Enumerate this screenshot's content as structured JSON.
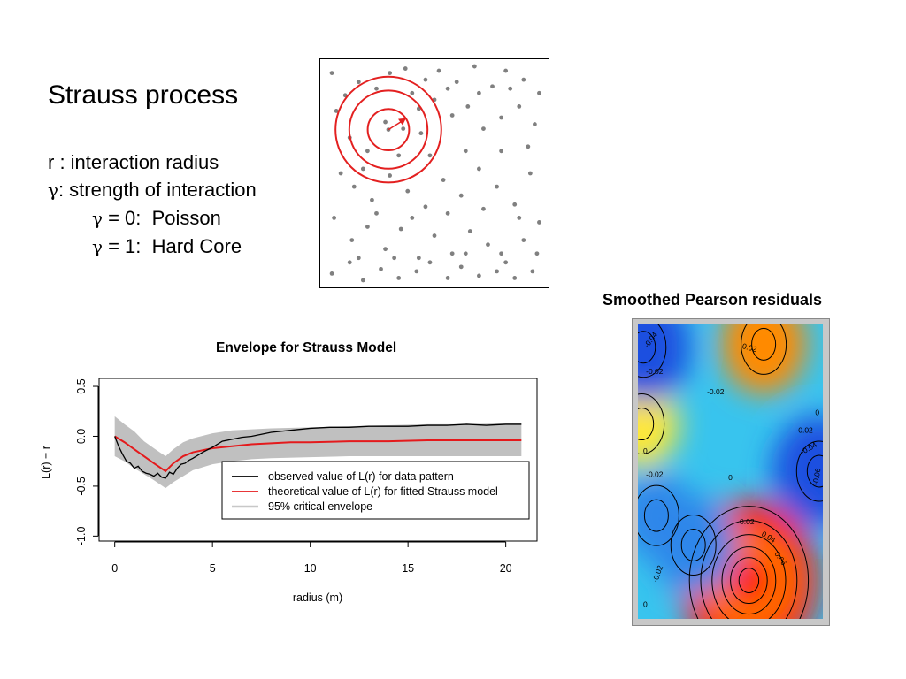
{
  "slide": {
    "title": "Strauss process",
    "bullets": [
      {
        "symbol": "",
        "text": "r : interaction radius"
      },
      {
        "symbol": "γ",
        "text": ": strength of interaction"
      },
      {
        "symbol": "γ",
        "text": " = 0:  Poisson"
      },
      {
        "symbol": "γ",
        "text": " = 1:  Hard Core"
      }
    ]
  },
  "colors": {
    "observed": "#000000",
    "theoretical": "#e41a1c",
    "envelope": "#c0c0c0",
    "circles": "#e32020",
    "points": "#808080"
  },
  "chart_data": [
    {
      "type": "scatter",
      "description_hidden": true,
      "points": [
        [
          0.04,
          0.95
        ],
        [
          0.16,
          0.91
        ],
        [
          0.3,
          0.95
        ],
        [
          0.37,
          0.97
        ],
        [
          0.46,
          0.92
        ],
        [
          0.52,
          0.96
        ],
        [
          0.6,
          0.91
        ],
        [
          0.68,
          0.98
        ],
        [
          0.76,
          0.89
        ],
        [
          0.82,
          0.96
        ],
        [
          0.9,
          0.92
        ],
        [
          0.97,
          0.86
        ],
        [
          0.06,
          0.78
        ],
        [
          0.12,
          0.66
        ],
        [
          0.2,
          0.6
        ],
        [
          0.28,
          0.73
        ],
        [
          0.36,
          0.7
        ],
        [
          0.43,
          0.79
        ],
        [
          0.5,
          0.83
        ],
        [
          0.58,
          0.76
        ],
        [
          0.65,
          0.8
        ],
        [
          0.72,
          0.7
        ],
        [
          0.8,
          0.75
        ],
        [
          0.88,
          0.8
        ],
        [
          0.95,
          0.72
        ],
        [
          0.08,
          0.5
        ],
        [
          0.14,
          0.44
        ],
        [
          0.22,
          0.38
        ],
        [
          0.3,
          0.49
        ],
        [
          0.38,
          0.42
        ],
        [
          0.46,
          0.35
        ],
        [
          0.54,
          0.47
        ],
        [
          0.62,
          0.4
        ],
        [
          0.7,
          0.52
        ],
        [
          0.78,
          0.44
        ],
        [
          0.86,
          0.36
        ],
        [
          0.93,
          0.5
        ],
        [
          0.05,
          0.3
        ],
        [
          0.13,
          0.2
        ],
        [
          0.2,
          0.26
        ],
        [
          0.28,
          0.16
        ],
        [
          0.35,
          0.25
        ],
        [
          0.43,
          0.12
        ],
        [
          0.5,
          0.22
        ],
        [
          0.58,
          0.14
        ],
        [
          0.66,
          0.24
        ],
        [
          0.74,
          0.18
        ],
        [
          0.82,
          0.1
        ],
        [
          0.9,
          0.2
        ],
        [
          0.97,
          0.28
        ],
        [
          0.04,
          0.05
        ],
        [
          0.12,
          0.1
        ],
        [
          0.18,
          0.02
        ],
        [
          0.26,
          0.07
        ],
        [
          0.34,
          0.03
        ],
        [
          0.42,
          0.06
        ],
        [
          0.56,
          0.03
        ],
        [
          0.62,
          0.08
        ],
        [
          0.7,
          0.04
        ],
        [
          0.78,
          0.06
        ],
        [
          0.86,
          0.03
        ],
        [
          0.94,
          0.06
        ],
        [
          0.1,
          0.85
        ],
        [
          0.24,
          0.88
        ],
        [
          0.4,
          0.86
        ],
        [
          0.56,
          0.88
        ],
        [
          0.7,
          0.86
        ],
        [
          0.84,
          0.88
        ],
        [
          0.18,
          0.52
        ],
        [
          0.48,
          0.58
        ],
        [
          0.64,
          0.6
        ],
        [
          0.8,
          0.6
        ],
        [
          0.92,
          0.62
        ],
        [
          0.34,
          0.58
        ],
        [
          0.24,
          0.32
        ],
        [
          0.4,
          0.3
        ],
        [
          0.56,
          0.32
        ],
        [
          0.72,
          0.34
        ],
        [
          0.88,
          0.3
        ],
        [
          0.16,
          0.12
        ],
        [
          0.32,
          0.12
        ],
        [
          0.48,
          0.1
        ],
        [
          0.64,
          0.14
        ],
        [
          0.8,
          0.14
        ],
        [
          0.96,
          0.14
        ],
        [
          0.44,
          0.68
        ]
      ],
      "circles": {
        "center": [
          0.3,
          0.69
        ],
        "radii": [
          0.09,
          0.17,
          0.23
        ]
      }
    },
    {
      "type": "line",
      "title": "Envelope for Strauss Model",
      "xlabel": "radius (m)",
      "ylabel": "L(r) − r",
      "xlim": [
        -0.8,
        21.6
      ],
      "ylim": [
        -1.05,
        0.58
      ],
      "xticks": [
        0,
        5,
        10,
        15,
        20
      ],
      "yticks": [
        -1.0,
        -0.5,
        0.0,
        0.5
      ],
      "legend": [
        "observed value of L(r) for data pattern",
        "theoretical value of L(r) for fitted Strauss model",
        "95% critical envelope"
      ],
      "legend_position": "bottom-right",
      "series": [
        {
          "name": "observed value of L(r) for data pattern",
          "x": [
            0,
            0.2,
            0.4,
            0.6,
            0.8,
            1.0,
            1.2,
            1.4,
            1.6,
            1.8,
            2.0,
            2.2,
            2.4,
            2.6,
            2.8,
            3.0,
            3.2,
            3.4,
            3.6,
            3.8,
            4.0,
            4.5,
            5.0,
            5.5,
            6.0,
            6.5,
            7.0,
            7.5,
            8.0,
            9.0,
            10.0,
            11.0,
            12.0,
            13.0,
            14.0,
            15.0,
            16.0,
            17.0,
            18.0,
            19.0,
            20.0,
            20.8
          ],
          "y": [
            0,
            -0.1,
            -0.18,
            -0.25,
            -0.27,
            -0.32,
            -0.3,
            -0.35,
            -0.37,
            -0.38,
            -0.4,
            -0.37,
            -0.41,
            -0.42,
            -0.36,
            -0.38,
            -0.32,
            -0.28,
            -0.27,
            -0.24,
            -0.22,
            -0.16,
            -0.11,
            -0.05,
            -0.03,
            -0.01,
            0.0,
            0.02,
            0.04,
            0.06,
            0.08,
            0.09,
            0.09,
            0.1,
            0.1,
            0.1,
            0.11,
            0.11,
            0.12,
            0.11,
            0.12,
            0.12
          ]
        },
        {
          "name": "theoretical value of L(r) for fitted Strauss model",
          "x": [
            0,
            0.5,
            1.0,
            1.5,
            2.0,
            2.6,
            3.0,
            3.5,
            4.0,
            5.0,
            6.0,
            7.0,
            8.0,
            9.0,
            10.0,
            12.0,
            14.0,
            16.0,
            18.0,
            20.0,
            20.8
          ],
          "y": [
            0,
            -0.06,
            -0.13,
            -0.2,
            -0.27,
            -0.35,
            -0.27,
            -0.2,
            -0.16,
            -0.12,
            -0.1,
            -0.08,
            -0.07,
            -0.06,
            -0.06,
            -0.05,
            -0.05,
            -0.04,
            -0.04,
            -0.04,
            -0.04
          ]
        },
        {
          "name": "95% critical envelope",
          "x": [
            0,
            0.5,
            1.0,
            1.5,
            2.0,
            2.6,
            3.0,
            3.5,
            4.0,
            5.0,
            6.0,
            7.0,
            8.0,
            10.0,
            12.0,
            14.0,
            16.0,
            18.0,
            20.0,
            20.8
          ],
          "upper": [
            0.2,
            0.12,
            0.05,
            -0.05,
            -0.12,
            -0.2,
            -0.13,
            -0.06,
            -0.02,
            0.03,
            0.06,
            0.07,
            0.08,
            0.09,
            0.1,
            0.11,
            0.12,
            0.12,
            0.13,
            0.13
          ],
          "lower": [
            -0.2,
            -0.25,
            -0.32,
            -0.38,
            -0.44,
            -0.52,
            -0.46,
            -0.4,
            -0.34,
            -0.28,
            -0.25,
            -0.23,
            -0.22,
            -0.21,
            -0.2,
            -0.2,
            -0.2,
            -0.2,
            -0.2,
            -0.2
          ]
        }
      ]
    },
    {
      "type": "heatmap",
      "title": "Smoothed Pearson residuals",
      "color_scale": [
        "#1f4fe0",
        "#36c8ee",
        "#ffff40",
        "#ff8000",
        "#ff1010"
      ],
      "hotspots": [
        {
          "x": 0.6,
          "y": 0.13,
          "value": 0.09
        },
        {
          "x": 0.68,
          "y": 0.93,
          "value": 0.04
        },
        {
          "x": 0.02,
          "y": 0.66,
          "value": 0.03
        },
        {
          "x": 0.98,
          "y": 0.5,
          "value": -0.05
        },
        {
          "x": 0.03,
          "y": 0.92,
          "value": -0.05
        },
        {
          "x": 0.3,
          "y": 0.25,
          "value": -0.04
        },
        {
          "x": 0.1,
          "y": 0.35,
          "value": -0.03
        }
      ],
      "contour_labels": [
        {
          "text": "-0.04",
          "x": 0.08,
          "y": 0.94,
          "rot": -55
        },
        {
          "text": "-0.02",
          "x": 0.09,
          "y": 0.83,
          "rot": 0
        },
        {
          "text": "0.02",
          "x": 0.6,
          "y": 0.91,
          "rot": 15
        },
        {
          "text": "-0.02",
          "x": 0.42,
          "y": 0.76,
          "rot": 0
        },
        {
          "text": "0",
          "x": 0.97,
          "y": 0.69,
          "rot": 0
        },
        {
          "text": "-0.02",
          "x": 0.9,
          "y": 0.63,
          "rot": 0
        },
        {
          "text": "-0.04",
          "x": 0.93,
          "y": 0.57,
          "rot": -30
        },
        {
          "text": "-0.06",
          "x": 0.98,
          "y": 0.48,
          "rot": -80
        },
        {
          "text": "0",
          "x": 0.04,
          "y": 0.56,
          "rot": 0
        },
        {
          "text": "-0.02",
          "x": 0.09,
          "y": 0.48,
          "rot": 0
        },
        {
          "text": "0",
          "x": 0.5,
          "y": 0.47,
          "rot": 0
        },
        {
          "text": "0.02",
          "x": 0.59,
          "y": 0.32,
          "rot": 0
        },
        {
          "text": "0.04",
          "x": 0.7,
          "y": 0.27,
          "rot": 30
        },
        {
          "text": "0.06",
          "x": 0.76,
          "y": 0.2,
          "rot": 55
        },
        {
          "text": "-0.02",
          "x": 0.12,
          "y": 0.15,
          "rot": -70
        },
        {
          "text": "0",
          "x": 0.04,
          "y": 0.04,
          "rot": 0
        }
      ]
    }
  ]
}
